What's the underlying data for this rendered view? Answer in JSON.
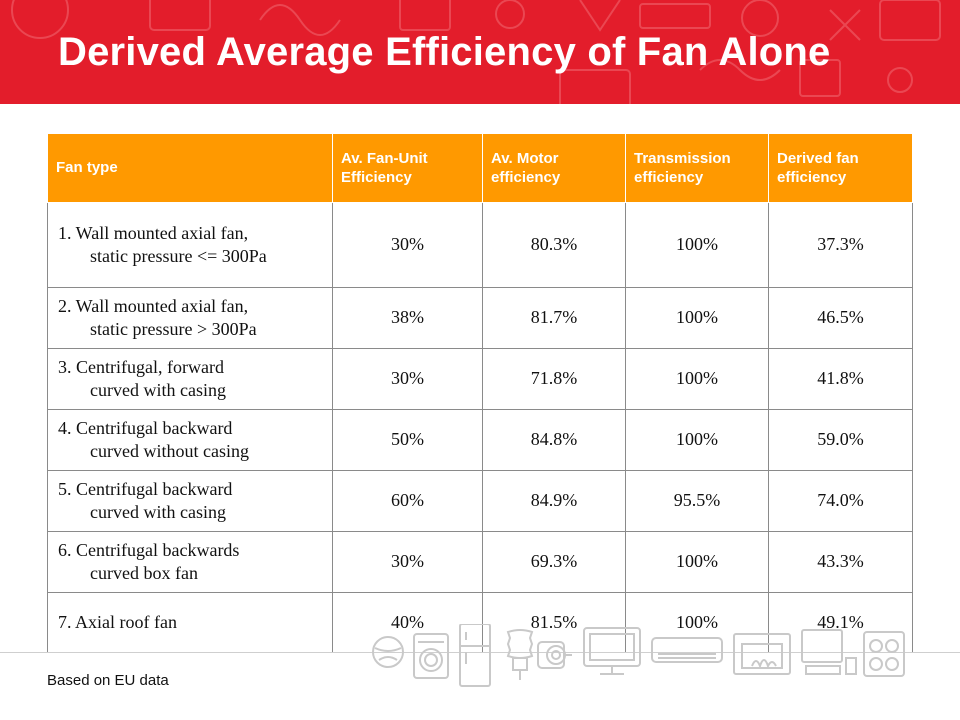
{
  "header": {
    "title": "Derived Average Efficiency of Fan Alone",
    "background_color": "#e31d2b"
  },
  "table": {
    "header_color": "#ff9900",
    "columns": [
      "Fan type",
      "Av. Fan-Unit Efficiency",
      "Av. Motor efficiency",
      "Transmission efficiency",
      "Derived fan efficiency"
    ],
    "rows": [
      {
        "label_first": "1. Wall mounted axial fan,",
        "label_rest": "static pressure <= 300Pa",
        "fan_unit": "30%",
        "motor": "80.3%",
        "transmission": "100%",
        "derived": "37.3%"
      },
      {
        "label_first": "2. Wall mounted axial fan,",
        "label_rest": "static pressure > 300Pa",
        "fan_unit": "38%",
        "motor": "81.7%",
        "transmission": "100%",
        "derived": "46.5%"
      },
      {
        "label_first": "3. Centrifugal, forward",
        "label_rest": "curved with casing",
        "fan_unit": "30%",
        "motor": "71.8%",
        "transmission": "100%",
        "derived": "41.8%"
      },
      {
        "label_first": "4. Centrifugal backward",
        "label_rest": "curved without casing",
        "fan_unit": "50%",
        "motor": "84.8%",
        "transmission": "100%",
        "derived": "59.0%"
      },
      {
        "label_first": "5. Centrifugal backward",
        "label_rest": "curved with casing",
        "fan_unit": "60%",
        "motor": "84.9%",
        "transmission": "95.5%",
        "derived": "74.0%"
      },
      {
        "label_first": "6. Centrifugal backwards",
        "label_rest": "curved box fan",
        "fan_unit": "30%",
        "motor": "69.3%",
        "transmission": "100%",
        "derived": "43.3%"
      },
      {
        "label_first": "7. Axial roof fan",
        "label_rest": "",
        "fan_unit": "40%",
        "motor": "81.5%",
        "transmission": "100%",
        "derived": "49.1%"
      }
    ]
  },
  "footer": {
    "note": "Based on EU data",
    "appliance_icons": [
      "globe-icon",
      "washing-machine-icon",
      "refrigerator-icon",
      "light-bulb-icon",
      "motor-icon",
      "monitor-icon",
      "air-conditioner-icon",
      "fireplace-icon",
      "computer-icon",
      "cooktop-icon"
    ]
  }
}
